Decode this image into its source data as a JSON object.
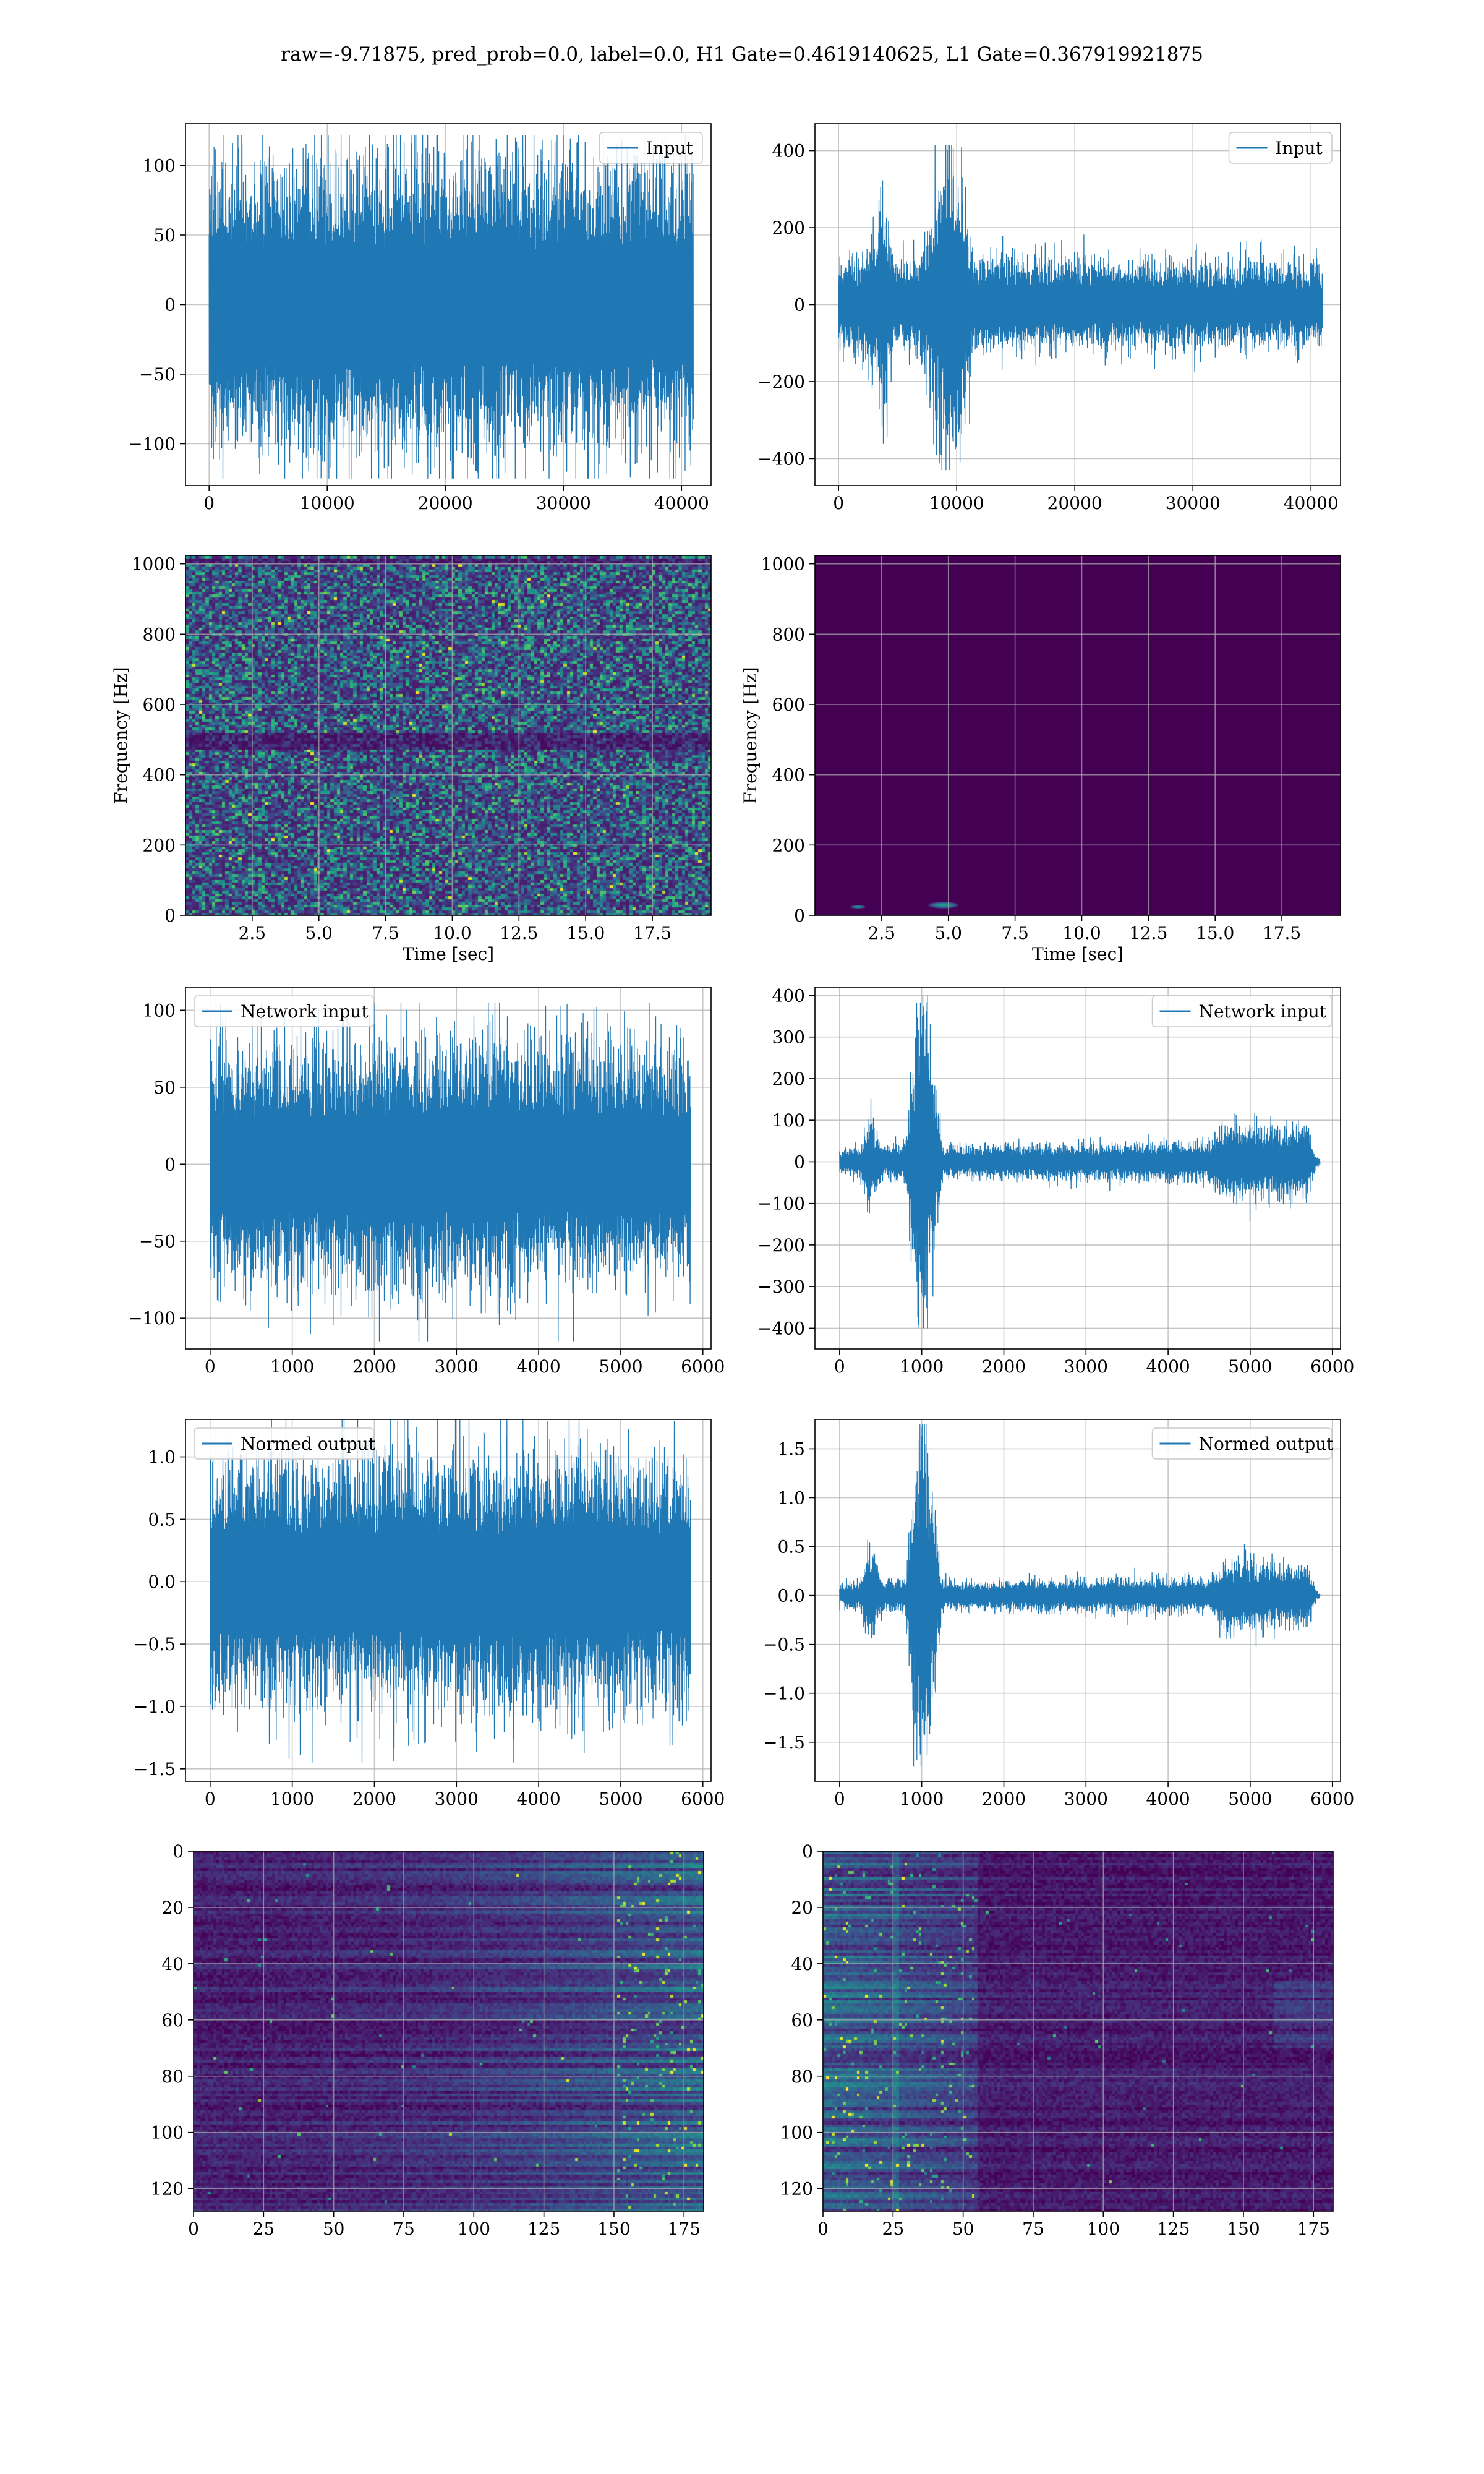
{
  "page": {
    "title": "raw=-9.71875, pred_prob=0.0, label=0.0, H1 Gate=0.4619140625, L1 Gate=0.367919921875"
  },
  "colors": {
    "line": "#1f77b4",
    "grid": "#b0b0b0",
    "spine": "#000000",
    "viridis_dark": "#440154",
    "viridis_mid": "#21918c",
    "viridis_bright": "#fde725"
  },
  "chart_data": [
    {
      "id": "p1",
      "type": "line",
      "legend": "Input",
      "legend_loc": "upper right",
      "xlim": [
        -2000,
        42500
      ],
      "ylim": [
        -130,
        130
      ],
      "xticks": [
        0,
        10000,
        20000,
        30000,
        40000
      ],
      "yticks": [
        -100,
        -50,
        0,
        50,
        100
      ],
      "xlabel": "",
      "ylabel": "",
      "grid": true,
      "x_range": [
        0,
        41000
      ],
      "envelope": [
        {
          "x": 0,
          "amp": 85
        },
        {
          "x": 20500,
          "amp": 90
        },
        {
          "x": 41000,
          "amp": 85
        }
      ],
      "peak_max": 122,
      "peak_min": -125
    },
    {
      "id": "p2",
      "type": "line",
      "legend": "Input",
      "legend_loc": "upper right",
      "xlim": [
        -2000,
        42500
      ],
      "ylim": [
        -470,
        470
      ],
      "xticks": [
        0,
        10000,
        20000,
        30000,
        40000
      ],
      "yticks": [
        -400,
        -200,
        0,
        200,
        400
      ],
      "xlabel": "",
      "ylabel": "",
      "grid": true,
      "x_range": [
        0,
        41000
      ],
      "envelope": [
        {
          "x": 0,
          "amp": 90
        },
        {
          "x": 2500,
          "amp": 110
        },
        {
          "x": 3700,
          "amp": 240
        },
        {
          "x": 4800,
          "amp": 90
        },
        {
          "x": 7000,
          "amp": 110
        },
        {
          "x": 9500,
          "amp": 410
        },
        {
          "x": 11500,
          "amp": 100
        },
        {
          "x": 41000,
          "amp": 90
        }
      ],
      "peak_max": 415,
      "peak_min": -430
    },
    {
      "id": "p3",
      "type": "heatmap",
      "style": "spectrogram-noise",
      "xlim": [
        0,
        19.7
      ],
      "ylim": [
        0,
        1024
      ],
      "xticks": [
        2.5,
        5.0,
        7.5,
        10.0,
        12.5,
        15.0,
        17.5
      ],
      "yticks": [
        0,
        200,
        400,
        600,
        800,
        1000
      ],
      "xlabel": "Time [sec]",
      "ylabel": "Frequency [Hz]",
      "grid": true
    },
    {
      "id": "p4",
      "type": "heatmap",
      "style": "spectrogram-quiet",
      "xlim": [
        0,
        19.7
      ],
      "ylim": [
        0,
        1024
      ],
      "xticks": [
        2.5,
        5.0,
        7.5,
        10.0,
        12.5,
        15.0,
        17.5
      ],
      "yticks": [
        0,
        200,
        400,
        600,
        800,
        1000
      ],
      "xlabel": "Time [sec]",
      "ylabel": "Frequency [Hz]",
      "grid": true,
      "blobs": [
        {
          "x": 4.8,
          "y": 30,
          "w": 1.2,
          "h": 20
        },
        {
          "x": 1.6,
          "y": 25,
          "w": 0.6,
          "h": 10
        }
      ]
    },
    {
      "id": "p5",
      "type": "line",
      "legend": "Network input",
      "legend_loc": "upper left",
      "xlim": [
        -300,
        6100
      ],
      "ylim": [
        -120,
        115
      ],
      "xticks": [
        0,
        1000,
        2000,
        3000,
        4000,
        5000,
        6000
      ],
      "yticks": [
        -100,
        -50,
        0,
        50,
        100
      ],
      "xlabel": "",
      "ylabel": "",
      "grid": true,
      "x_range": [
        0,
        5850
      ],
      "envelope": [
        {
          "x": 0,
          "amp": 62
        },
        {
          "x": 2900,
          "amp": 68
        },
        {
          "x": 5850,
          "amp": 62
        }
      ],
      "peak_max": 105,
      "peak_min": -115
    },
    {
      "id": "p6",
      "type": "line",
      "legend": "Network input",
      "legend_loc": "upper right",
      "xlim": [
        -300,
        6100
      ],
      "ylim": [
        -450,
        420
      ],
      "xticks": [
        0,
        1000,
        2000,
        3000,
        4000,
        5000,
        6000
      ],
      "yticks": [
        -400,
        -300,
        -200,
        -100,
        0,
        100,
        200,
        300,
        400
      ],
      "xlabel": "",
      "ylabel": "",
      "grid": true,
      "x_range": [
        0,
        5850
      ],
      "envelope": [
        {
          "x": 0,
          "amp": 25
        },
        {
          "x": 250,
          "amp": 30
        },
        {
          "x": 350,
          "amp": 100
        },
        {
          "x": 550,
          "amp": 30
        },
        {
          "x": 800,
          "amp": 40
        },
        {
          "x": 1000,
          "amp": 400
        },
        {
          "x": 1250,
          "amp": 30
        },
        {
          "x": 4500,
          "amp": 40
        },
        {
          "x": 4700,
          "amp": 80
        },
        {
          "x": 5700,
          "amp": 70
        },
        {
          "x": 5800,
          "amp": 15
        },
        {
          "x": 5850,
          "amp": 5
        }
      ],
      "peak_max": 400,
      "peak_min": -400
    },
    {
      "id": "p7",
      "type": "line",
      "legend": "Normed output",
      "legend_loc": "upper left",
      "xlim": [
        -300,
        6100
      ],
      "ylim": [
        -1.6,
        1.3
      ],
      "xticks": [
        0,
        1000,
        2000,
        3000,
        4000,
        5000,
        6000
      ],
      "yticks": [
        -1.5,
        -1.0,
        -0.5,
        0.0,
        0.5,
        1.0
      ],
      "xlabel": "",
      "ylabel": "",
      "grid": true,
      "x_range": [
        0,
        5850
      ],
      "envelope": [
        {
          "x": 0,
          "amp": 0.8
        },
        {
          "x": 2900,
          "amp": 0.85
        },
        {
          "x": 5850,
          "amp": 0.8
        }
      ],
      "peak_max": 1.3,
      "peak_min": -1.45
    },
    {
      "id": "p8",
      "type": "line",
      "legend": "Normed output",
      "legend_loc": "upper right",
      "xlim": [
        -300,
        6100
      ],
      "ylim": [
        -1.9,
        1.8
      ],
      "xticks": [
        0,
        1000,
        2000,
        3000,
        4000,
        5000,
        6000
      ],
      "yticks": [
        -1.5,
        -1.0,
        -0.5,
        0.0,
        0.5,
        1.0,
        1.5
      ],
      "xlabel": "",
      "ylabel": "",
      "grid": true,
      "x_range": [
        0,
        5850
      ],
      "envelope": [
        {
          "x": 0,
          "amp": 0.1
        },
        {
          "x": 250,
          "amp": 0.12
        },
        {
          "x": 350,
          "amp": 0.4
        },
        {
          "x": 550,
          "amp": 0.12
        },
        {
          "x": 800,
          "amp": 0.15
        },
        {
          "x": 1000,
          "amp": 1.75
        },
        {
          "x": 1250,
          "amp": 0.12
        },
        {
          "x": 4500,
          "amp": 0.15
        },
        {
          "x": 4700,
          "amp": 0.3
        },
        {
          "x": 5700,
          "amp": 0.25
        },
        {
          "x": 5800,
          "amp": 0.05
        },
        {
          "x": 5850,
          "amp": 0.02
        }
      ],
      "peak_max": 1.75,
      "peak_min": -1.75
    },
    {
      "id": "p9",
      "type": "heatmap",
      "style": "feature-right-heavy",
      "xlim": [
        0,
        182
      ],
      "ylim": [
        128,
        0
      ],
      "xticks": [
        0,
        25,
        50,
        75,
        100,
        125,
        150,
        175
      ],
      "yticks": [
        0,
        20,
        40,
        60,
        80,
        100,
        120
      ],
      "xlabel": "",
      "ylabel": "",
      "grid": true
    },
    {
      "id": "p10",
      "type": "heatmap",
      "style": "feature-left-heavy",
      "xlim": [
        0,
        182
      ],
      "ylim": [
        128,
        0
      ],
      "xticks": [
        0,
        25,
        50,
        75,
        100,
        125,
        150,
        175
      ],
      "yticks": [
        0,
        20,
        40,
        60,
        80,
        100,
        120
      ],
      "xlabel": "",
      "ylabel": "",
      "grid": true
    }
  ]
}
